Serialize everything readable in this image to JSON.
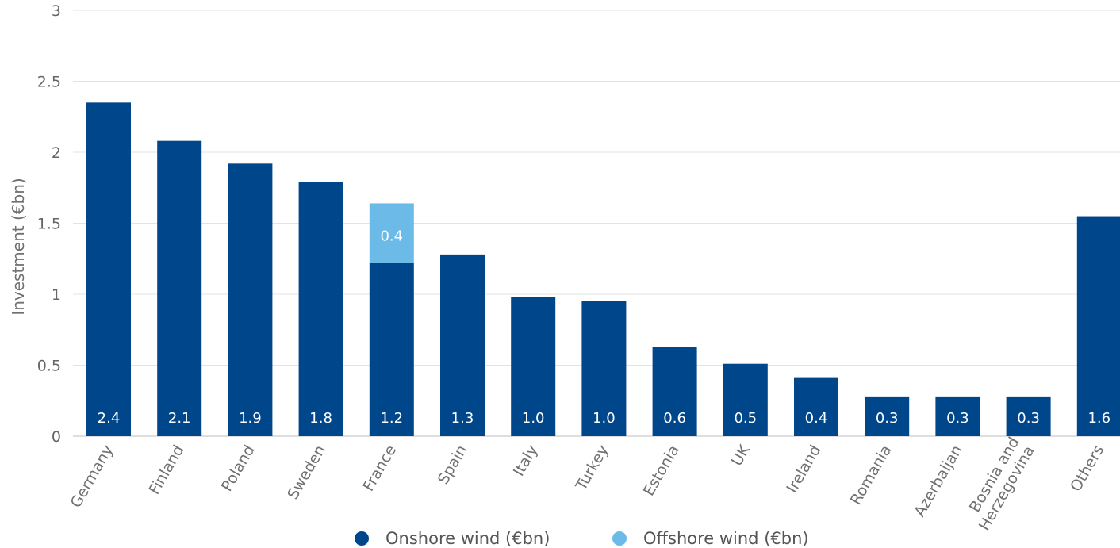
{
  "chart_data": {
    "type": "bar",
    "stacked": true,
    "title": "",
    "xlabel": "",
    "ylabel": "Investment (€bn)",
    "ylim": [
      0,
      3
    ],
    "yticks": [
      "0",
      "0.5",
      "1",
      "1.5",
      "2",
      "2.5",
      "3"
    ],
    "grid": true,
    "legend_position": "bottom",
    "categories": [
      "Germany",
      "Finland",
      "Poland",
      "Sweden",
      "France",
      "Spain",
      "Italy",
      "Turkey",
      "Estonia",
      "UK",
      "Ireland",
      "Romania",
      "Azerbaijan",
      "Bosnia and\nHerzegovina",
      "Others"
    ],
    "series": [
      {
        "name": "Onshore wind (€bn)",
        "color": "#00468b",
        "values": [
          2.35,
          2.08,
          1.92,
          1.79,
          1.22,
          1.28,
          0.98,
          0.95,
          0.63,
          0.51,
          0.41,
          0.28,
          0.28,
          0.28,
          1.55
        ],
        "labels": [
          "2.4",
          "2.1",
          "1.9",
          "1.8",
          "1.2",
          "1.3",
          "1.0",
          "1.0",
          "0.6",
          "0.5",
          "0.4",
          "0.3",
          "0.3",
          "0.3",
          "1.6"
        ]
      },
      {
        "name": "Offshore wind (€bn)",
        "color": "#6bbae8",
        "values": [
          0,
          0,
          0,
          0,
          0.42,
          0,
          0,
          0,
          0,
          0,
          0,
          0,
          0,
          0,
          0
        ],
        "labels": [
          "",
          "",
          "",
          "",
          "0.4",
          "",
          "",
          "",
          "",
          "",
          "",
          "",
          "",
          "",
          ""
        ]
      }
    ]
  }
}
